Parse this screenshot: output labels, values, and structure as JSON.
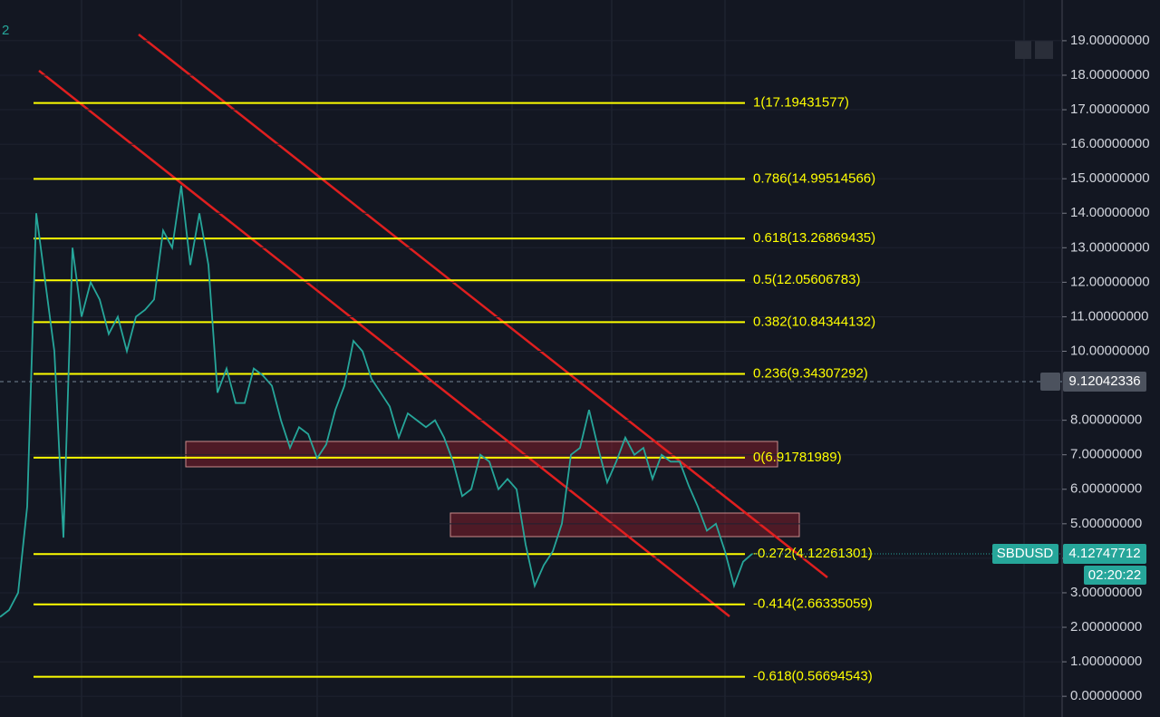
{
  "chart_data": {
    "type": "line",
    "corner_text": "2",
    "series": [
      {
        "name": "SBDUSD",
        "color": "#26a69a",
        "values": [
          2.3,
          2.5,
          3.0,
          5.5,
          14,
          12,
          10,
          4.6,
          13,
          11,
          12,
          11.5,
          10.5,
          11,
          10,
          11,
          11.2,
          11.5,
          13.5,
          13,
          14.8,
          12.5,
          14,
          12.5,
          8.8,
          9.5,
          8.5,
          8.5,
          9.5,
          9.3,
          9,
          8,
          7.2,
          7.8,
          7.6,
          6.9,
          7.3,
          8.3,
          9,
          10.3,
          10,
          9.2,
          8.8,
          8.4,
          7.5,
          8.2,
          8,
          7.8,
          8,
          7.5,
          6.8,
          5.8,
          6,
          7,
          6.8,
          6,
          6.3,
          6,
          4.4,
          3.2,
          3.8,
          4.2,
          5,
          7,
          7.2,
          8.3,
          7.2,
          6.2,
          6.8,
          7.5,
          7,
          7.2,
          6.3,
          7,
          6.8,
          6.8,
          6.1,
          5.5,
          4.8,
          5,
          4.2,
          3.2,
          3.9,
          4.13
        ]
      }
    ],
    "last_price": {
      "value": 4.12747712,
      "label": "4.12747712"
    },
    "crosshair": {
      "value": 9.12042336,
      "label": "9.12042336"
    },
    "countdown": "02:20:22",
    "fib_levels": [
      {
        "value": 17.19431577,
        "label": "1(17.19431577)"
      },
      {
        "value": 14.99514566,
        "label": "0.786(14.99514566)"
      },
      {
        "value": 13.26869435,
        "label": "0.618(13.26869435)"
      },
      {
        "value": 12.05606783,
        "label": "0.5(12.05606783)"
      },
      {
        "value": 10.84344132,
        "label": "0.382(10.84344132)"
      },
      {
        "value": 9.34307292,
        "label": "0.236(9.34307292)"
      },
      {
        "value": 6.91781989,
        "label": "0(6.91781989)"
      },
      {
        "value": 4.12261301,
        "label": "-0.272(4.12261301)"
      },
      {
        "value": 2.66335059,
        "label": "-0.414(2.66335059)"
      },
      {
        "value": 0.56694543,
        "label": "-0.618(0.56694543)"
      }
    ],
    "ylim": [
      -0.6,
      20.18
    ],
    "yticks": [
      {
        "value": 0,
        "label": "0.00000000"
      },
      {
        "value": 1,
        "label": "1.00000000"
      },
      {
        "value": 2,
        "label": "2.00000000"
      },
      {
        "value": 3,
        "label": "3.00000000"
      },
      {
        "value": 4,
        "label": "4.00000000"
      },
      {
        "value": 5,
        "label": "5.00000000"
      },
      {
        "value": 6,
        "label": "6.00000000"
      },
      {
        "value": 7,
        "label": "7.00000000"
      },
      {
        "value": 8,
        "label": "8.00000000"
      },
      {
        "value": 10,
        "label": "10.00000000"
      },
      {
        "value": 11,
        "label": "11.00000000"
      },
      {
        "value": 12,
        "label": "12.00000000"
      },
      {
        "value": 13,
        "label": "13.00000000"
      },
      {
        "value": 14,
        "label": "14.00000000"
      },
      {
        "value": 15,
        "label": "15.00000000"
      },
      {
        "value": 16,
        "label": "16.00000000"
      },
      {
        "value": 17,
        "label": "17.00000000"
      },
      {
        "value": 18,
        "label": "18.00000000"
      },
      {
        "value": 19,
        "label": "19.00000000"
      }
    ],
    "grid": true
  }
}
